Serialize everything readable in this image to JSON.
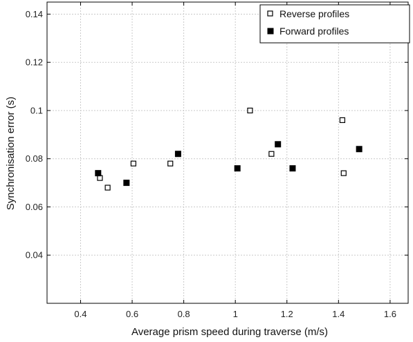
{
  "chart_data": {
    "type": "scatter",
    "title": "",
    "xlabel": "Average prism speed during traverse (m/s)",
    "ylabel": "Synchronisation error (s)",
    "xlim": [
      0.27,
      1.67
    ],
    "ylim": [
      0.02,
      0.145
    ],
    "xticks": [
      0.4,
      0.6,
      0.8,
      1.0,
      1.2,
      1.4,
      1.6
    ],
    "xtick_labels": [
      "0.4",
      "0.6",
      "0.8",
      "1",
      "1.2",
      "1.4",
      "1.6"
    ],
    "yticks": [
      0.04,
      0.06,
      0.08,
      0.1,
      0.12,
      0.14
    ],
    "ytick_labels": [
      "0.04",
      "0.06",
      "0.08",
      "0.1",
      "0.12",
      "0.14"
    ],
    "grid": true,
    "legend_position": "top-right",
    "series": [
      {
        "name": "Reverse profiles",
        "marker": "open-square",
        "color": "#000000",
        "x": [
          0.475,
          0.505,
          0.605,
          0.748,
          1.057,
          1.14,
          1.415,
          1.42
        ],
        "y": [
          0.072,
          0.068,
          0.078,
          0.078,
          0.1,
          0.082,
          0.096,
          0.074
        ]
      },
      {
        "name": "Forward profiles",
        "marker": "filled-square",
        "color": "#000000",
        "x": [
          0.468,
          0.578,
          0.778,
          1.008,
          1.165,
          1.222,
          1.48
        ],
        "y": [
          0.074,
          0.07,
          0.082,
          0.076,
          0.086,
          0.076,
          0.084
        ]
      }
    ]
  }
}
